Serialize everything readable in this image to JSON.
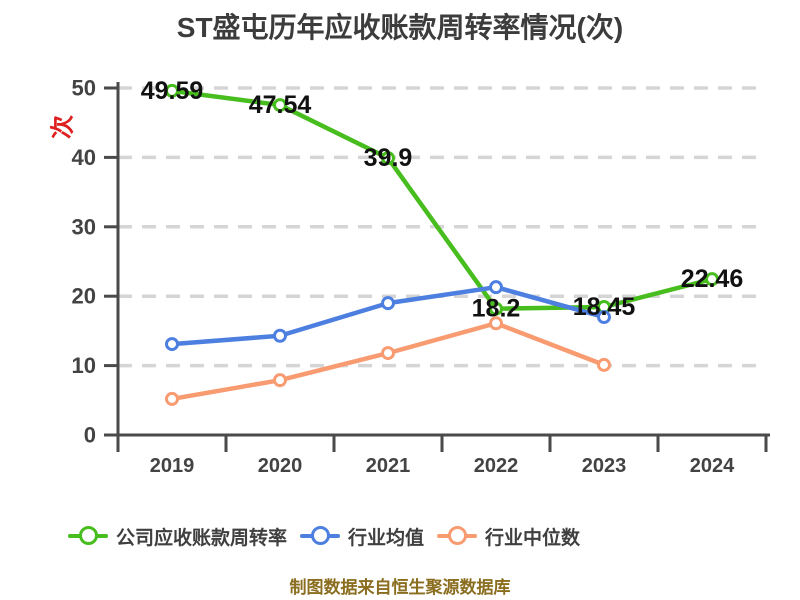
{
  "title": "ST盛屯历年应收账款周转率情况(次)",
  "footer": "制图数据来自恒生聚源数据库",
  "colors": {
    "company": "#47bd1e",
    "industry_avg": "#4c7fe0",
    "industry_median": "#f89b70",
    "grid": "#d5d5d5",
    "axis": "#4a4a4a",
    "tick_label": "#434343",
    "data_label": "#111111",
    "unit": "#e02020",
    "title": "#3c3c3c",
    "legend_text": "#3f3f3f",
    "footer": "#8a6d1f"
  },
  "legend": [
    {
      "key": "company-turnover",
      "label": "公司应收账款周转率",
      "color": "#47bd1e"
    },
    {
      "key": "industry-average",
      "label": "行业均值",
      "color": "#4c7fe0"
    },
    {
      "key": "industry-median",
      "label": "行业中位数",
      "color": "#f89b70"
    }
  ],
  "chart_data": {
    "type": "line",
    "title": "ST盛屯历年应收账款周转率情况(次)",
    "categories": [
      "2019",
      "2020",
      "2021",
      "2022",
      "2023",
      "2024"
    ],
    "series": [
      {
        "key": "company-turnover",
        "name": "公司应收账款周转率",
        "color": "#47bd1e",
        "values": [
          49.59,
          47.54,
          39.9,
          18.2,
          18.45,
          22.46
        ],
        "labeled": true
      },
      {
        "key": "industry-average",
        "name": "行业均值",
        "color": "#4c7fe0",
        "values": [
          13.1,
          14.3,
          19.0,
          21.3,
          17.0,
          null
        ],
        "labeled": false
      },
      {
        "key": "industry-median",
        "name": "行业中位数",
        "color": "#f89b70",
        "values": [
          5.2,
          7.9,
          11.8,
          16.1,
          10.1,
          null
        ],
        "labeled": false
      }
    ],
    "xlabel": "",
    "ylabel": "次",
    "ylim": [
      0,
      50
    ],
    "y_ticks": [
      0,
      10,
      20,
      30,
      40,
      50
    ],
    "grid": true,
    "grid_style": "dashed",
    "legend_position": "bottom",
    "marker": "open-circle"
  }
}
